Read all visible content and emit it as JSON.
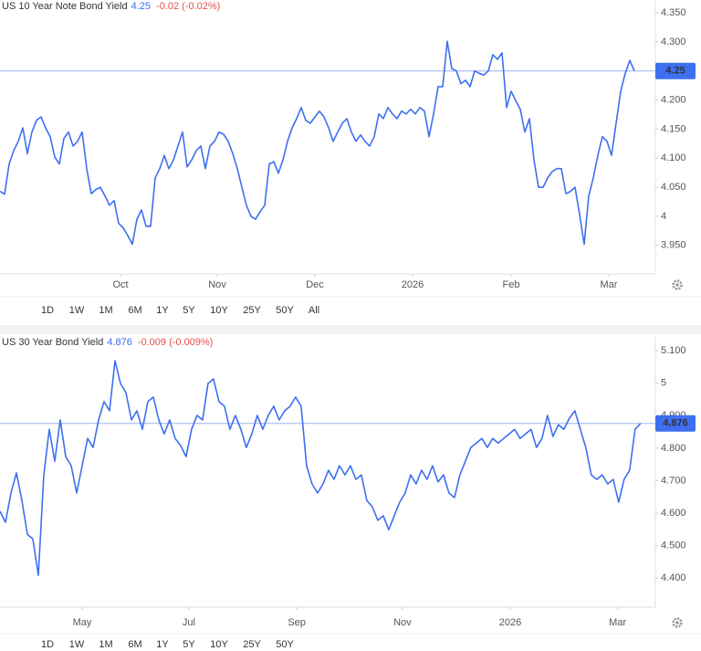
{
  "chart_data": [
    {
      "type": "line",
      "title": "US 10 Year Note Bond Yield",
      "last_value": 4.25,
      "change": "-0.02 (-0.02%)",
      "color": "#3d6ff0",
      "x": [
        0,
        1,
        2,
        3,
        4,
        5,
        6,
        7,
        8,
        9,
        10,
        11,
        12,
        13,
        14,
        15,
        16,
        17,
        18,
        19,
        20,
        21,
        22,
        23,
        24,
        25,
        26,
        27,
        28,
        29,
        30,
        31,
        32,
        33,
        34,
        35,
        36,
        37,
        38,
        39,
        40,
        41,
        42,
        43,
        44,
        45,
        46,
        47,
        48,
        49,
        50,
        51,
        52,
        53,
        54,
        55,
        56,
        57,
        58,
        59,
        60,
        61,
        62,
        63,
        64,
        65,
        66,
        67,
        68,
        69,
        70,
        71,
        72,
        73,
        74,
        75,
        76,
        77,
        78,
        79,
        80,
        81,
        82,
        83,
        84,
        85,
        86,
        87,
        88,
        89,
        90,
        91,
        92,
        93,
        94,
        95,
        96,
        97,
        98,
        99,
        100,
        101,
        102,
        103,
        104,
        105,
        106,
        107,
        108,
        109,
        110,
        111,
        112,
        113,
        114,
        115,
        116,
        117,
        118,
        119,
        120,
        121,
        122,
        123,
        124,
        125,
        126,
        127,
        128,
        129,
        130,
        131,
        132,
        133,
        134,
        135,
        136,
        137,
        138,
        139
      ],
      "values": [
        4.043,
        4.038,
        4.09,
        4.113,
        4.129,
        4.152,
        4.108,
        4.145,
        4.165,
        4.171,
        4.152,
        4.137,
        4.102,
        4.09,
        4.134,
        4.145,
        4.121,
        4.129,
        4.145,
        4.082,
        4.039,
        4.046,
        4.05,
        4.035,
        4.019,
        4.027,
        3.988,
        3.98,
        3.967,
        3.952,
        3.995,
        4.011,
        3.983,
        3.983,
        4.066,
        4.082,
        4.105,
        4.082,
        4.097,
        4.121,
        4.145,
        4.085,
        4.097,
        4.113,
        4.121,
        4.082,
        4.121,
        4.129,
        4.145,
        4.141,
        4.129,
        4.108,
        4.082,
        4.05,
        4.019,
        4.0,
        3.995,
        4.008,
        4.019,
        4.09,
        4.094,
        4.074,
        4.097,
        4.129,
        4.152,
        4.168,
        4.187,
        4.165,
        4.16,
        4.171,
        4.181,
        4.171,
        4.152,
        4.129,
        4.145,
        4.16,
        4.168,
        4.145,
        4.129,
        4.14,
        4.129,
        4.121,
        4.137,
        4.176,
        4.168,
        4.187,
        4.176,
        4.168,
        4.181,
        4.176,
        4.184,
        4.176,
        4.187,
        4.181,
        4.137,
        4.176,
        4.223,
        4.223,
        4.301,
        4.254,
        4.25,
        4.228,
        4.234,
        4.223,
        4.25,
        4.246,
        4.243,
        4.25,
        4.278,
        4.27,
        4.281,
        4.187,
        4.215,
        4.199,
        4.184,
        4.145,
        4.168,
        4.097,
        4.05,
        4.05,
        4.066,
        4.077,
        4.082,
        4.082,
        4.039,
        4.043,
        4.05,
        4.003,
        3.952,
        4.035,
        4.066,
        4.105,
        4.137,
        4.129,
        4.105,
        4.16,
        4.215,
        4.246,
        4.268,
        4.25
      ],
      "xlim": [
        0,
        143.6
      ],
      "xticks": [
        {
          "value": 26.4,
          "label": "Oct"
        },
        {
          "value": 47.6,
          "label": "Nov"
        },
        {
          "value": 69,
          "label": "Dec"
        },
        {
          "value": 90.4,
          "label": "2026"
        },
        {
          "value": 112,
          "label": "Feb"
        },
        {
          "value": 133.4,
          "label": "Mar"
        }
      ],
      "ylim": [
        3.901,
        4.372
      ],
      "yticks": [
        {
          "value": 4.35,
          "label": "4.350"
        },
        {
          "value": 4.3,
          "label": "4.300"
        },
        {
          "value": 4.2,
          "label": "4.200"
        },
        {
          "value": 4.15,
          "label": "4.150"
        },
        {
          "value": 4.1,
          "label": "4.100"
        },
        {
          "value": 4.05,
          "label": "4.050"
        },
        4,
        {
          "value": 3.95,
          "label": "3.950"
        }
      ],
      "ranges": [
        "1D",
        "1W",
        "1M",
        "6M",
        "1Y",
        "5Y",
        "10Y",
        "25Y",
        "50Y",
        "All"
      ],
      "active_range": "6M"
    },
    {
      "type": "line",
      "title": "US 30 Year Bond Yield",
      "last_value": 4.876,
      "change": "-0.009 (-0.009%)",
      "color": "#3d6ff0",
      "x": [
        0,
        1,
        2,
        3,
        4,
        5,
        6,
        7,
        8,
        9,
        10,
        11,
        12,
        13,
        14,
        15,
        16,
        17,
        18,
        19,
        20,
        21,
        22,
        23,
        24,
        25,
        26,
        27,
        28,
        29,
        30,
        31,
        32,
        33,
        34,
        35,
        36,
        37,
        38,
        39,
        40,
        41,
        42,
        43,
        44,
        45,
        46,
        47,
        48,
        49,
        50,
        51,
        52,
        53,
        54,
        55,
        56,
        57,
        58,
        59,
        60,
        61,
        62,
        63,
        64,
        65,
        66,
        67,
        68,
        69,
        70,
        71,
        72,
        73,
        74,
        75,
        76,
        77,
        78,
        79,
        80,
        81,
        82,
        83,
        84,
        85,
        86,
        87,
        88,
        89,
        90,
        91,
        92,
        93,
        94,
        95,
        96,
        97,
        98,
        99,
        100,
        101,
        102,
        103,
        104,
        105,
        106,
        107,
        108,
        109,
        110,
        111,
        112,
        113,
        114,
        115,
        116,
        117
      ],
      "values": [
        4.606,
        4.572,
        4.662,
        4.724,
        4.639,
        4.535,
        4.521,
        4.409,
        4.718,
        4.858,
        4.76,
        4.887,
        4.774,
        4.746,
        4.662,
        4.746,
        4.83,
        4.802,
        4.887,
        4.943,
        4.915,
        5.069,
        4.999,
        4.971,
        4.887,
        4.915,
        4.858,
        4.943,
        4.957,
        4.887,
        4.844,
        4.887,
        4.83,
        4.808,
        4.774,
        4.858,
        4.901,
        4.887,
        4.999,
        5.013,
        4.943,
        4.929,
        4.858,
        4.901,
        4.858,
        4.802,
        4.844,
        4.901,
        4.858,
        4.901,
        4.929,
        4.887,
        4.915,
        4.929,
        4.957,
        4.929,
        4.746,
        4.69,
        4.662,
        4.69,
        4.732,
        4.704,
        4.746,
        4.718,
        4.746,
        4.704,
        4.718,
        4.639,
        4.62,
        4.578,
        4.592,
        4.549,
        4.592,
        4.634,
        4.662,
        4.718,
        4.69,
        4.732,
        4.704,
        4.746,
        4.696,
        4.718,
        4.662,
        4.648,
        4.718,
        4.76,
        4.802,
        4.816,
        4.83,
        4.802,
        4.83,
        4.816,
        4.83,
        4.844,
        4.858,
        4.83,
        4.844,
        4.858,
        4.802,
        4.83,
        4.901,
        4.836,
        4.872,
        4.858,
        4.892,
        4.915,
        4.858,
        4.802,
        4.718,
        4.704,
        4.718,
        4.69,
        4.704,
        4.634,
        4.704,
        4.732,
        4.858,
        4.876
      ],
      "xlim": [
        0,
        119.7
      ],
      "xticks": [
        {
          "value": 15,
          "label": "May"
        },
        {
          "value": 34.5,
          "label": "Jul"
        },
        {
          "value": 54.2,
          "label": "Sep"
        },
        {
          "value": 73.5,
          "label": "Nov"
        },
        {
          "value": 93.2,
          "label": "2026"
        },
        {
          "value": 112.8,
          "label": "Mar"
        }
      ],
      "ylim": [
        4.311,
        5.145
      ],
      "yticks": [
        {
          "value": 5.1,
          "label": "5.100"
        },
        5,
        {
          "value": 4.9,
          "label": "4.900"
        },
        {
          "value": 4.8,
          "label": "4.800"
        },
        {
          "value": 4.7,
          "label": "4.700"
        },
        {
          "value": 4.6,
          "label": "4.600"
        },
        {
          "value": 4.5,
          "label": "4.500"
        },
        {
          "value": 4.4,
          "label": "4.400"
        }
      ],
      "ranges": [
        "1D",
        "1W",
        "1M",
        "6M",
        "1Y",
        "5Y",
        "10Y",
        "25Y",
        "50Y"
      ],
      "active_range": "1Y"
    }
  ]
}
